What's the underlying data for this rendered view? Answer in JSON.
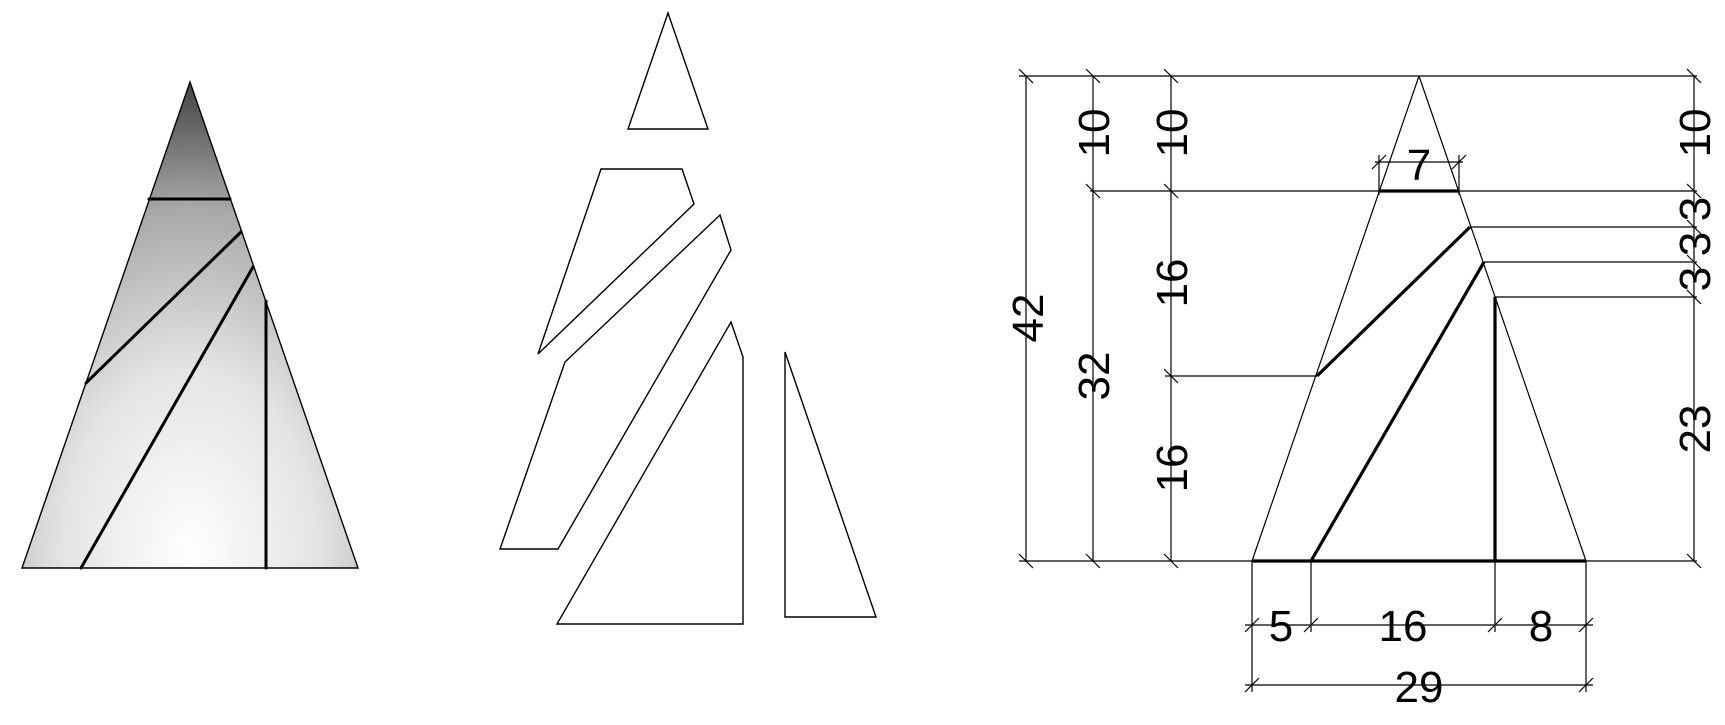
{
  "colors": {
    "stroke": "#000000",
    "background": "#ffffff",
    "shade_dark": "#4a4a4a",
    "shade_light": "#ffffff"
  },
  "dimensions": {
    "total_height": "42",
    "top_height_left": "10",
    "top_height_mid": "10",
    "top_height_right": "10",
    "top_width": "7",
    "body_height": "32",
    "body_upper": "16",
    "body_lower": "16",
    "right_gap_1": "3",
    "right_gap_2": "3",
    "right_gap_3": "3",
    "right_lower": "23",
    "base_seg_1": "5",
    "base_seg_2": "16",
    "base_seg_3": "8",
    "base_total": "29"
  }
}
